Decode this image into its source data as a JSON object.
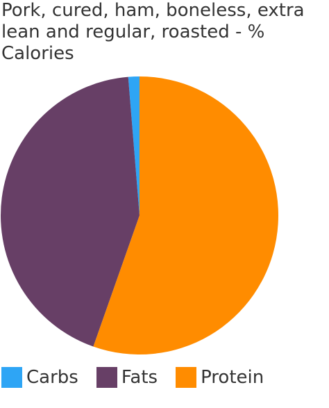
{
  "chart_data": {
    "type": "pie",
    "title": "Pork, cured, ham, boneless, extra lean and regular, roasted - % Calories",
    "categories": [
      "Carbs",
      "Fats",
      "Protein"
    ],
    "values": [
      1.3,
      43.3,
      55.4
    ],
    "colors": [
      "#2ea5f5",
      "#673f66",
      "#ff8c00"
    ]
  }
}
